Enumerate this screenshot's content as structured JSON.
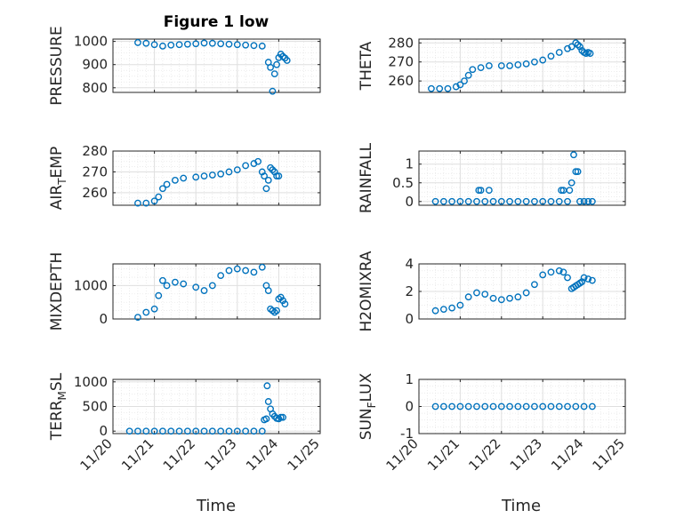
{
  "figure": {
    "title": "Figure 1 low",
    "xlabel": "Time",
    "x_tick_labels": [
      "11/20",
      "11/21",
      "11/22",
      "11/23",
      "11/24",
      "11/25"
    ]
  },
  "colors": {
    "marker": "#0072BD",
    "axis": "#262626",
    "grid": "#DFDFDF"
  },
  "chart_data": [
    {
      "type": "scatter",
      "ylabel": "PRESSURE",
      "ylabel_sub": null,
      "ylim": [
        780,
        1010
      ],
      "yticks": [
        800,
        900,
        1000
      ],
      "xlim": [
        20,
        25
      ],
      "grid": true,
      "x": [
        20.6,
        20.8,
        21.0,
        21.2,
        21.4,
        21.6,
        21.8,
        22.0,
        22.2,
        22.4,
        22.6,
        22.8,
        23.0,
        23.2,
        23.4,
        23.6,
        23.75,
        23.8,
        23.85,
        23.9,
        23.95,
        24.0,
        24.05,
        24.1,
        24.15,
        24.2
      ],
      "y": [
        995,
        992,
        986,
        980,
        984,
        986,
        988,
        990,
        993,
        992,
        990,
        988,
        986,
        984,
        982,
        980,
        910,
        888,
        785,
        860,
        900,
        930,
        945,
        935,
        928,
        918
      ]
    },
    {
      "type": "scatter",
      "ylabel": "THETA",
      "ylabel_sub": null,
      "ylim": [
        254,
        282
      ],
      "yticks": [
        260,
        270,
        280
      ],
      "xlim": [
        20,
        25
      ],
      "grid": true,
      "x": [
        20.3,
        20.5,
        20.7,
        20.9,
        21.0,
        21.1,
        21.2,
        21.3,
        21.5,
        21.7,
        22.0,
        22.2,
        22.4,
        22.6,
        22.8,
        23.0,
        23.2,
        23.4,
        23.6,
        23.7,
        23.8,
        23.85,
        23.9,
        23.95,
        24.0,
        24.05,
        24.1,
        24.15
      ],
      "y": [
        256,
        256,
        256,
        257,
        258,
        260,
        263,
        266,
        267,
        268,
        268,
        268,
        268.5,
        269,
        270,
        271,
        273,
        275,
        277,
        278,
        280,
        279,
        278,
        276,
        275,
        274.5,
        275,
        274.5
      ]
    },
    {
      "type": "scatter",
      "ylabel": "AIR",
      "ylabel_sub": "T",
      "ylabel_tail": "EMP",
      "ylim": [
        254,
        280
      ],
      "yticks": [
        260,
        270,
        280
      ],
      "xlim": [
        20,
        25
      ],
      "grid": true,
      "x": [
        20.6,
        20.8,
        21.0,
        21.1,
        21.2,
        21.3,
        21.5,
        21.7,
        22.0,
        22.2,
        22.4,
        22.6,
        22.8,
        23.0,
        23.2,
        23.4,
        23.5,
        23.6,
        23.65,
        23.7,
        23.75,
        23.8,
        23.85,
        23.9,
        23.95,
        24.0
      ],
      "y": [
        255,
        255,
        256,
        258,
        262,
        264,
        266,
        267,
        267.5,
        268,
        268.5,
        269,
        270,
        271,
        273,
        274,
        275,
        270,
        268,
        262,
        266,
        272,
        271,
        270,
        268,
        268
      ]
    },
    {
      "type": "scatter",
      "ylabel": "RAINFALL",
      "ylabel_sub": null,
      "ylim": [
        -0.1,
        1.35
      ],
      "yticks": [
        0,
        0.5,
        1
      ],
      "ytick_labels": [
        "0",
        "0.5",
        "1"
      ],
      "xlim": [
        20,
        25
      ],
      "grid": true,
      "x": [
        20.4,
        20.6,
        20.8,
        21.0,
        21.2,
        21.4,
        21.45,
        21.5,
        21.6,
        21.7,
        21.8,
        22.0,
        22.2,
        22.4,
        22.6,
        22.8,
        23.0,
        23.2,
        23.4,
        23.45,
        23.5,
        23.6,
        23.65,
        23.7,
        23.75,
        23.8,
        23.85,
        23.9,
        24.0,
        24.1,
        24.2
      ],
      "y": [
        0,
        0,
        0,
        0,
        0,
        0,
        0.3,
        0.3,
        0,
        0.3,
        0,
        0,
        0,
        0,
        0,
        0,
        0,
        0,
        0,
        0.3,
        0.3,
        0,
        0.3,
        0.5,
        1.25,
        0.8,
        0.8,
        0,
        0,
        0,
        0
      ]
    },
    {
      "type": "scatter",
      "ylabel": "MIXDEPTH",
      "ylabel_sub": null,
      "ylim": [
        0,
        1650
      ],
      "yticks": [
        0,
        1000
      ],
      "xlim": [
        20,
        25
      ],
      "grid": true,
      "x": [
        20.6,
        20.8,
        21.0,
        21.1,
        21.2,
        21.3,
        21.5,
        21.7,
        22.0,
        22.2,
        22.4,
        22.6,
        22.8,
        23.0,
        23.2,
        23.4,
        23.6,
        23.7,
        23.75,
        23.8,
        23.85,
        23.9,
        23.95,
        24.0,
        24.05,
        24.1,
        24.15
      ],
      "y": [
        50,
        200,
        300,
        700,
        1150,
        1000,
        1100,
        1050,
        950,
        850,
        1000,
        1300,
        1450,
        1500,
        1450,
        1400,
        1550,
        1000,
        850,
        300,
        250,
        200,
        250,
        600,
        650,
        550,
        450
      ]
    },
    {
      "type": "scatter",
      "ylabel": "H2OMIXRA",
      "ylabel_sub": null,
      "ylim": [
        0,
        4
      ],
      "yticks": [
        0,
        2,
        4
      ],
      "xlim": [
        20,
        25
      ],
      "grid": true,
      "x": [
        20.4,
        20.6,
        20.8,
        21.0,
        21.2,
        21.4,
        21.6,
        21.8,
        22.0,
        22.2,
        22.4,
        22.6,
        22.8,
        23.0,
        23.2,
        23.4,
        23.5,
        23.6,
        23.7,
        23.75,
        23.8,
        23.85,
        23.9,
        23.95,
        24.0,
        24.1,
        24.2
      ],
      "y": [
        0.6,
        0.7,
        0.8,
        1.0,
        1.6,
        1.9,
        1.8,
        1.5,
        1.4,
        1.5,
        1.6,
        1.9,
        2.5,
        3.2,
        3.4,
        3.5,
        3.4,
        3.0,
        2.2,
        2.3,
        2.4,
        2.5,
        2.6,
        2.7,
        3.0,
        2.9,
        2.8
      ]
    },
    {
      "type": "scatter",
      "ylabel": "TERR",
      "ylabel_sub": "M",
      "ylabel_tail": "SL",
      "ylim": [
        -50,
        1050
      ],
      "yticks": [
        0,
        500,
        1000
      ],
      "xlim": [
        20,
        25
      ],
      "grid": true,
      "x": [
        20.4,
        20.6,
        20.8,
        21.0,
        21.2,
        21.4,
        21.6,
        21.8,
        22.0,
        22.2,
        22.4,
        22.6,
        22.8,
        23.0,
        23.2,
        23.4,
        23.6,
        23.65,
        23.7,
        23.72,
        23.75,
        23.8,
        23.85,
        23.9,
        23.95,
        24.0,
        24.05,
        24.1
      ],
      "y": [
        0,
        0,
        0,
        0,
        0,
        0,
        0,
        0,
        0,
        0,
        0,
        0,
        0,
        0,
        0,
        0,
        0,
        230,
        250,
        920,
        600,
        450,
        350,
        300,
        260,
        250,
        280,
        280
      ]
    },
    {
      "type": "scatter",
      "ylabel": "SUN",
      "ylabel_sub": "F",
      "ylabel_tail": "LUX",
      "ylim": [
        -1,
        1
      ],
      "yticks": [
        -1,
        0,
        1
      ],
      "xlim": [
        20,
        25
      ],
      "grid": true,
      "x": [
        20.4,
        20.6,
        20.8,
        21.0,
        21.2,
        21.4,
        21.6,
        21.8,
        22.0,
        22.2,
        22.4,
        22.6,
        22.8,
        23.0,
        23.2,
        23.4,
        23.6,
        23.8,
        24.0,
        24.2
      ],
      "y": [
        0,
        0,
        0,
        0,
        0,
        0,
        0,
        0,
        0,
        0,
        0,
        0,
        0,
        0,
        0,
        0,
        0,
        0,
        0,
        0
      ]
    }
  ]
}
